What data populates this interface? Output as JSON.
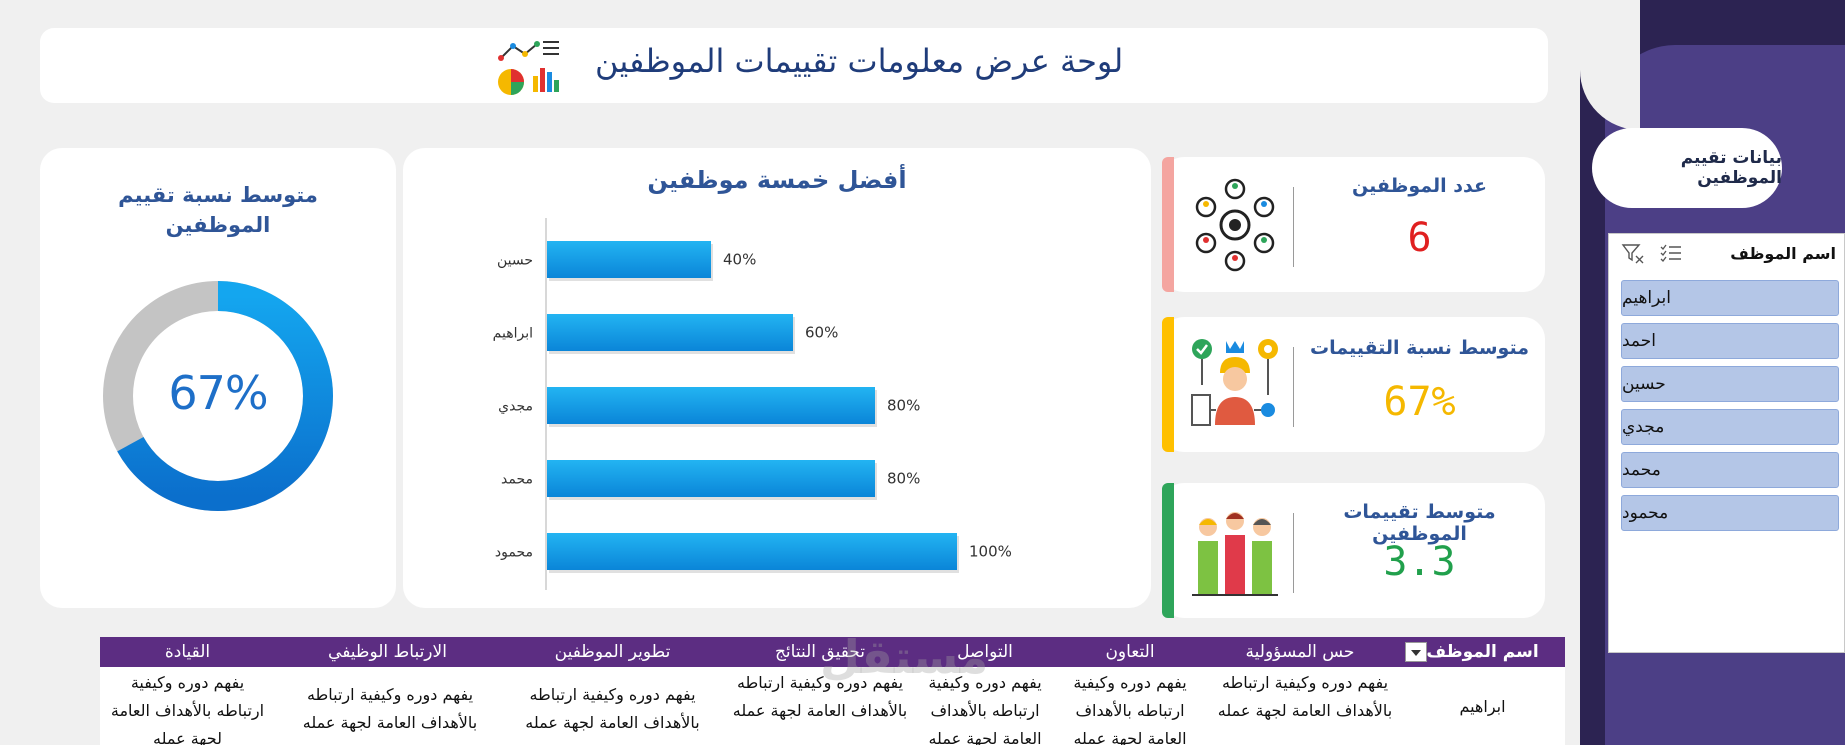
{
  "header": {
    "title": "لوحة عرض معلومات تقييمات الموظفين",
    "icon": "chart-analytics-icon"
  },
  "side_panel": {
    "title": "بيانات تقييم الموظفين",
    "slicer": {
      "title": "اسم الموظف",
      "items": [
        "ابراهيم",
        "احمد",
        "حسين",
        "مجدي",
        "محمد",
        "محمود"
      ]
    }
  },
  "donut": {
    "title_line1": "متوسط نسبة تقييم",
    "title_line2": "الموظفين",
    "value_label": "67%",
    "value": 0.67,
    "colors": {
      "filled": "#1a8be0",
      "rest": "#c4c4c4"
    }
  },
  "kpis": [
    {
      "label": "عدد الموظفين",
      "value": "6",
      "color": "#e02020",
      "accent": "#f4a5a0",
      "icon": "people-network-icon"
    },
    {
      "label": "متوسط نسبة التقييمات",
      "value": "67%",
      "color": "#f5b800",
      "accent": "#ffc000",
      "icon": "worker-skills-icon"
    },
    {
      "label": "متوسط تقييمات الموظفين",
      "value": "3.3",
      "color": "#21a04c",
      "accent": "#2ea55a",
      "icon": "team-ranking-icon"
    }
  ],
  "chart_data": {
    "type": "bar",
    "orientation": "horizontal",
    "title": "أفضل خمسة موظفين",
    "categories": [
      "حسين",
      "ابراهيم",
      "مجدي",
      "محمد",
      "محمود"
    ],
    "values": [
      40,
      60,
      80,
      80,
      100
    ],
    "value_labels": [
      "40%",
      "60%",
      "80%",
      "80%",
      "100%"
    ],
    "xlim": [
      0,
      100
    ],
    "bar_color": "#0fa3e8",
    "grid": false
  },
  "table": {
    "headers": [
      "اسم الموظف",
      "حس المسؤولية",
      "التعاون",
      "التواصل",
      "تحقيق النتائج",
      "تطوير الموظفين",
      "الارتباط الوظيفي",
      "القيادة"
    ],
    "row": [
      "ابراهيم",
      "يفهم دوره وكيفية ارتباطه بالأهداف العامة لجهة عمله",
      "يفهم دوره وكيفية ارتباطه بالأهداف العامة لجهة عمله",
      "يفهم دوره وكيفية ارتباطه بالأهداف العامة لجهة عمله",
      "يفهم دوره وكيفية ارتباطه بالأهداف العامة لجهة عمله",
      "يفهم دوره وكيفية ارتباطه بالأهداف العامة لجهة عمله",
      "يفهم دوره وكيفية ارتباطه بالأهداف العامة لجهة عمله",
      "يفهم دوره وكيفية ارتباطه بالأهداف العامة لجهة عمله"
    ],
    "header_bg": "#5c2d82"
  },
  "watermark": "مستقل"
}
